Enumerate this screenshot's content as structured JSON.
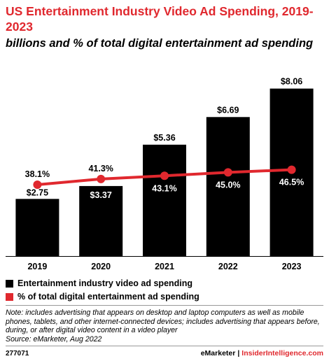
{
  "title": "US Entertainment Industry Video Ad Spending, 2019-2023",
  "subtitle": "billions and % of total digital entertainment ad spending",
  "chart_data": {
    "type": "bar",
    "categories": [
      "2019",
      "2020",
      "2021",
      "2022",
      "2023"
    ],
    "series": [
      {
        "name": "Entertainment industry video ad spending",
        "type": "bar",
        "values": [
          2.75,
          3.37,
          5.36,
          6.69,
          8.06
        ],
        "labels": [
          "$2.75",
          "$3.37",
          "$5.36",
          "$6.69",
          "$8.06"
        ],
        "color": "#000000"
      },
      {
        "name": "% of total digital entertainment ad spending",
        "type": "line",
        "values": [
          38.1,
          41.3,
          43.1,
          45.0,
          46.5
        ],
        "labels": [
          "38.1%",
          "41.3%",
          "43.1%",
          "45.0%",
          "46.5%"
        ],
        "color": "#e0282e"
      }
    ],
    "grid": false,
    "legend_position": "bottom-left"
  },
  "note": "Note: includes advertising that appears on desktop and laptop computers as well as mobile phones, tablets, and other internet-connected devices; includes advertising that appears before, during, or after digital video content in a video player",
  "source": "Source: eMarketer, Aug 2022",
  "footer": {
    "chart_id": "277071",
    "brand_left": "eMarketer",
    "separator": "|",
    "brand_right": "InsiderIntelligence.com"
  }
}
